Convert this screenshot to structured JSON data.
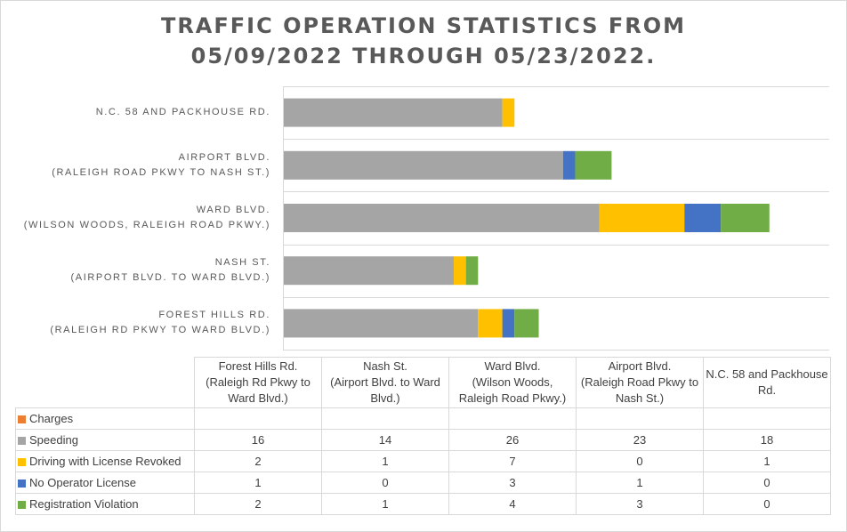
{
  "chart_data": {
    "type": "bar",
    "orientation": "horizontal",
    "stacked": true,
    "title": "TRAFFIC OPERATION STATISTICS FROM 05/09/2022 THROUGH 05/23/2022.",
    "title_lines": [
      "TRAFFIC OPERATION STATISTICS FROM",
      "05/09/2022 THROUGH 05/23/2022."
    ],
    "categories": [
      "Forest Hills Rd. (Raleigh Rd Pkwy to Ward Blvd.)",
      "Nash St. (Airport Blvd. to Ward Blvd.)",
      "Ward Blvd. (Wilson Woods, Raleigh Road Pkwy.)",
      "Airport Blvd. (Raleigh Road Pkwy to Nash St.)",
      "N.C. 58 and Packhouse Rd."
    ],
    "axis_labels": [
      [
        "FOREST HILLS RD.",
        "(RALEIGH RD PKWY TO WARD BLVD.)"
      ],
      [
        "NASH ST.",
        "(AIRPORT BLVD. TO WARD BLVD.)"
      ],
      [
        "WARD BLVD.",
        "(WILSON WOODS, RALEIGH ROAD PKWY.)"
      ],
      [
        "AIRPORT BLVD.",
        "(RALEIGH ROAD PKWY TO NASH ST.)"
      ],
      [
        "N.C. 58 AND PACKHOUSE RD."
      ]
    ],
    "table_headers": [
      [
        "Forest Hills Rd.",
        "(Raleigh Rd Pkwy to",
        "Ward Blvd.)"
      ],
      [
        "Nash St.",
        "(Airport Blvd. to Ward",
        "Blvd.)"
      ],
      [
        "Ward Blvd.",
        "(Wilson Woods,",
        "Raleigh Road Pkwy.)"
      ],
      [
        "Airport Blvd.",
        "(Raleigh Road Pkwy to",
        "Nash St.)"
      ],
      [
        "N.C. 58 and Packhouse",
        "Rd."
      ]
    ],
    "series": [
      {
        "name": "Charges",
        "color": "#ed7d31",
        "values": [
          null,
          null,
          null,
          null,
          null
        ]
      },
      {
        "name": "Speeding",
        "color": "#a5a5a5",
        "values": [
          16,
          14,
          26,
          23,
          18
        ]
      },
      {
        "name": "Driving with License Revoked",
        "color": "#ffc000",
        "values": [
          2,
          1,
          7,
          0,
          1
        ]
      },
      {
        "name": "No Operator License",
        "color": "#4472c4",
        "values": [
          1,
          0,
          3,
          1,
          0
        ]
      },
      {
        "name": "Registration Violation",
        "color": "#70ad47",
        "values": [
          2,
          1,
          4,
          3,
          0
        ]
      }
    ],
    "xlim": [
      0,
      45
    ],
    "grid": "horizontal category separators",
    "legend": "data table below chart"
  }
}
